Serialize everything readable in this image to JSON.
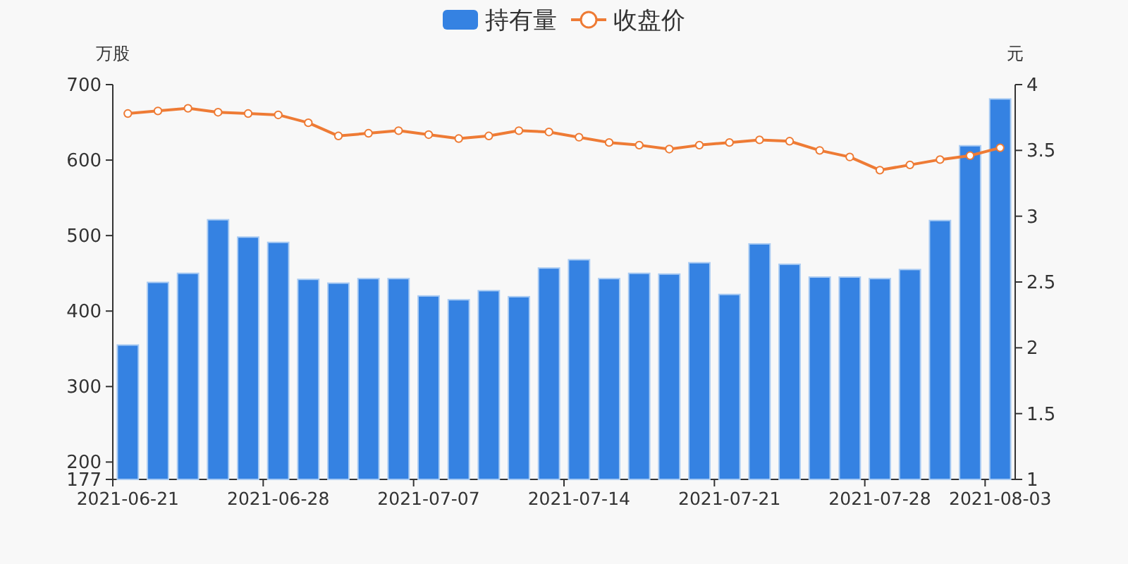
{
  "chart_data": {
    "type": "bar",
    "categories": [
      "2021-06-21",
      null,
      null,
      null,
      null,
      "2021-06-28",
      null,
      null,
      null,
      null,
      "2021-07-07",
      null,
      null,
      null,
      null,
      "2021-07-14",
      null,
      null,
      null,
      null,
      "2021-07-21",
      null,
      null,
      null,
      null,
      "2021-07-28",
      null,
      null,
      null,
      "2021-08-03"
    ],
    "series": [
      {
        "name": "持有量",
        "color": "#3582e2",
        "values": [
          355,
          438,
          450,
          521,
          498,
          491,
          442,
          437,
          443,
          443,
          420,
          415,
          427,
          419,
          457,
          468,
          443,
          450,
          449,
          464,
          422,
          489,
          462,
          445,
          445,
          443,
          455,
          520,
          619,
          681
        ]
      },
      {
        "name": "收盘价",
        "type": "line",
        "axis": "y2",
        "color": "#ee7b35",
        "marker": "circle",
        "values": [
          3.78,
          3.8,
          3.82,
          3.79,
          3.78,
          3.77,
          3.71,
          3.61,
          3.63,
          3.65,
          3.62,
          3.59,
          3.61,
          3.65,
          3.64,
          3.6,
          3.56,
          3.54,
          3.51,
          3.54,
          3.56,
          3.58,
          3.57,
          3.5,
          3.45,
          3.35,
          3.39,
          3.43,
          3.46,
          3.52
        ]
      }
    ],
    "ylabel": "万股",
    "y2label": "元",
    "ylim": [
      177,
      700
    ],
    "yticks": [
      177,
      200,
      300,
      400,
      500,
      600,
      700
    ],
    "y2lim": [
      1,
      4
    ],
    "y2ticks": [
      1,
      1.5,
      2,
      2.5,
      3,
      3.5,
      4
    ],
    "legend": "top"
  }
}
